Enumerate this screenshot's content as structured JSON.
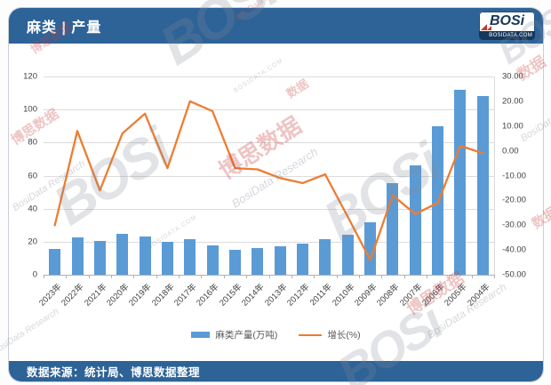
{
  "header": {
    "title": "麻类 | 产量",
    "logo": {
      "brand": "BOSi",
      "domain": "BOSIDATA.COM"
    }
  },
  "footer": {
    "source": "数据来源：统计局、博思数据整理"
  },
  "watermark": {
    "brand": "BOSi",
    "domain": "BOSIDATA.COM",
    "cn": "博思数据",
    "cn_short": "数据",
    "research": "BosiData Research"
  },
  "legend": {
    "bar_label": "麻类产量(万吨)",
    "line_label": "增长(%)"
  },
  "chart_data": {
    "type": "bar+line",
    "categories": [
      "2023年",
      "2022年",
      "2021年",
      "2020年",
      "2019年",
      "2018年",
      "2017年",
      "2016年",
      "2015年",
      "2014年",
      "2013年",
      "2012年",
      "2011年",
      "2010年",
      "2009年",
      "2008年",
      "2007年",
      "2006年",
      "2005年",
      "2004年"
    ],
    "series": [
      {
        "name": "麻类产量(万吨)",
        "type": "bar",
        "axis": "left",
        "color": "#5B9BD5",
        "values": [
          15.5,
          22.5,
          20.5,
          24.5,
          23,
          20,
          21.5,
          17.5,
          15,
          16,
          17,
          19,
          21.5,
          24,
          31.5,
          55.5,
          66,
          90,
          112,
          108
        ]
      },
      {
        "name": "增长(%)",
        "type": "line",
        "axis": "right",
        "color": "#ED7D31",
        "values": [
          -30,
          8,
          -16,
          7,
          15,
          -7,
          20,
          16,
          -7,
          -7.5,
          -11,
          -13,
          -9.5,
          -26.5,
          -44,
          -18,
          -25.5,
          -21,
          2,
          -1
        ]
      }
    ],
    "left_axis": {
      "ticks": [
        "0",
        "20",
        "40",
        "60",
        "80",
        "100",
        "120"
      ],
      "min": 0,
      "max": 120
    },
    "right_axis": {
      "ticks": [
        "30.00",
        "20.00",
        "10.00",
        "0.00",
        "-10.00",
        "-20.00",
        "-30.00",
        "-40.00",
        "-50.00"
      ],
      "min": -50,
      "max": 30
    },
    "grid": true,
    "legend_position": "bottom"
  }
}
